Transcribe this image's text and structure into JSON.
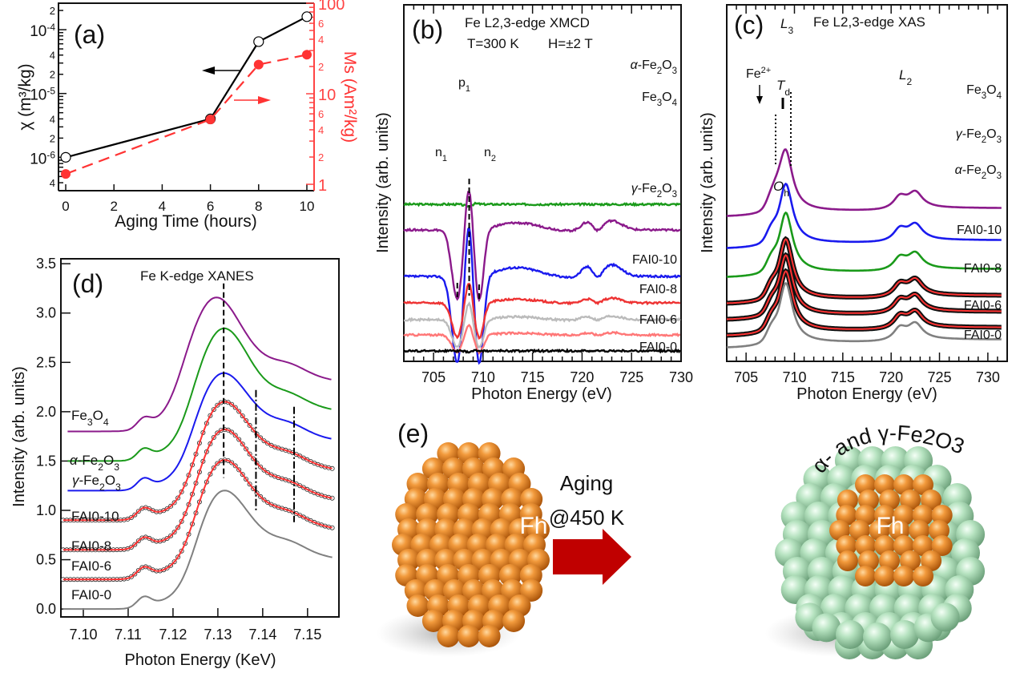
{
  "figure": {
    "panels": [
      "(a)",
      "(b)",
      "(c)",
      "(d)",
      "(e)"
    ]
  },
  "chart_data": [
    {
      "id": "a",
      "type": "line",
      "panel_label": "(a)",
      "xlabel": "Aging Time (hours)",
      "ylabel_left": "χ (m³/kg)",
      "ylabel_right": "Ms (Am²/kg)",
      "xlim": [
        -0.3,
        10.3
      ],
      "xticks": [
        0,
        2,
        4,
        6,
        8,
        10
      ],
      "ylim_left": [
        3e-07,
        0.00026
      ],
      "ylim_right": [
        0.85,
        100
      ],
      "yscale": "log",
      "left_tick_labels": [
        {
          "v": 4e-07,
          "t": "4"
        },
        {
          "v": 1e-06,
          "t": "10",
          "sup": "-6"
        },
        {
          "v": 2e-06,
          "t": "2"
        },
        {
          "v": 4e-06,
          "t": "4"
        },
        {
          "v": 1e-05,
          "t": "10",
          "sup": "-5"
        },
        {
          "v": 2e-05,
          "t": "2"
        },
        {
          "v": 4e-05,
          "t": "4"
        },
        {
          "v": 0.0001,
          "t": "10",
          "sup": "-4"
        },
        {
          "v": 0.0002,
          "t": "2"
        }
      ],
      "right_tick_labels": [
        {
          "v": 1,
          "t": "1"
        },
        {
          "v": 2,
          "t": "2"
        },
        {
          "v": 4,
          "t": "4"
        },
        {
          "v": 6,
          "t": "6"
        },
        {
          "v": 10,
          "t": "10"
        },
        {
          "v": 20,
          "t": "2"
        },
        {
          "v": 40,
          "t": "4"
        },
        {
          "v": 60,
          "t": "6"
        },
        {
          "v": 100,
          "t": "100"
        }
      ],
      "series": [
        {
          "name": "χ",
          "axis": "left",
          "color": "#000000",
          "marker": "open-circle",
          "dash": false,
          "x": [
            0,
            6,
            8,
            10
          ],
          "y": [
            1e-06,
            4e-06,
            6.5e-05,
            0.00016
          ]
        },
        {
          "name": "Ms",
          "axis": "right",
          "color": "#ff3333",
          "marker": "filled-circle",
          "dash": true,
          "x": [
            0,
            6,
            8,
            10
          ],
          "y": [
            1.3,
            5.2,
            21,
            27
          ]
        }
      ],
      "annotations": [
        {
          "type": "arrow",
          "direction": "left",
          "color": "#000000",
          "meaning": "left axis"
        },
        {
          "type": "arrow",
          "direction": "right",
          "color": "#ff3333",
          "meaning": "right axis"
        }
      ]
    },
    {
      "id": "b",
      "type": "line",
      "panel_label": "(b)",
      "title": "Fe L2,3-edge XMCD",
      "subtitle_1": "T=300 K",
      "subtitle_2": "H=±2 T",
      "xlabel": "Photon Energy (eV)",
      "ylabel": "Intensity (arb. units)",
      "xlim": [
        702,
        730
      ],
      "xticks": [
        705,
        710,
        715,
        720,
        725,
        730
      ],
      "peak_labels": [
        "p1",
        "n1",
        "n2"
      ],
      "vlines_eV": [
        707.4,
        708.6,
        709.6
      ],
      "series": [
        {
          "name": "α-Fe2O3",
          "color": "#1a9a1a",
          "offset": 9.3,
          "scale": 0.1,
          "kind": "flat"
        },
        {
          "name": "Fe3O4",
          "color": "#8b1a8b",
          "offset": 7.7,
          "scale": 1.0,
          "kind": "xmcd"
        },
        {
          "name": "γ-Fe2O3",
          "color": "#1a1aee",
          "offset": 4.8,
          "scale": 1.25,
          "kind": "xmcd"
        },
        {
          "name": "FAI0-10",
          "color": "#ee3333",
          "offset": 3.15,
          "scale": 0.5,
          "kind": "xmcd"
        },
        {
          "name": "FAI0-8",
          "color": "#bbbbbb",
          "offset": 2.1,
          "scale": 0.4,
          "kind": "xmcd"
        },
        {
          "name": "FAI0-6",
          "color": "#ff7777",
          "offset": 1.15,
          "scale": 0.25,
          "kind": "xmcd"
        },
        {
          "name": "FAI0-0",
          "color": "#000000",
          "offset": 0.15,
          "scale": 0.05,
          "kind": "flat"
        }
      ]
    },
    {
      "id": "c",
      "type": "line",
      "panel_label": "(c)",
      "title": "Fe L2,3-edge XAS",
      "xlabel": "Photon Energy (eV)",
      "ylabel": "Intensity (arb. units)",
      "xlim": [
        703,
        732
      ],
      "xticks": [
        705,
        710,
        715,
        720,
        725,
        730
      ],
      "peak_labels": [
        "L3",
        "L2",
        "Fe2+",
        "Td",
        "Oh"
      ],
      "series": [
        {
          "name": "Fe3O4",
          "color": "#8b1a8b",
          "offset": 8.4,
          "fit": false
        },
        {
          "name": "γ-Fe2O3",
          "color": "#1a1aee",
          "offset": 6.4,
          "fit": false
        },
        {
          "name": "α-Fe2O3",
          "color": "#1a9a1a",
          "offset": 4.6,
          "fit": false
        },
        {
          "name": "FAI0-10",
          "color": "#000000",
          "offset": 2.95,
          "fit": true,
          "fit_color": "#ff3333"
        },
        {
          "name": "FAI0-8",
          "color": "#000000",
          "offset": 1.95,
          "fit": true,
          "fit_color": "#ff3333"
        },
        {
          "name": "FAI0-6",
          "color": "#000000",
          "offset": 0.95,
          "fit": true,
          "fit_color": "#ff3333"
        },
        {
          "name": "FAI0-0",
          "color": "#808080",
          "offset": 0.2,
          "fit": false
        }
      ]
    },
    {
      "id": "d",
      "type": "line",
      "panel_label": "(d)",
      "title": "Fe K-edge XANES",
      "xlabel": "Photon Energy (KeV)",
      "ylabel": "Intensity (arb. units)",
      "xlim": [
        7.095,
        7.157
      ],
      "ylim": [
        -0.08,
        3.55
      ],
      "xticks": [
        7.1,
        7.11,
        7.12,
        7.13,
        7.14,
        7.15
      ],
      "xtick_labels": [
        "7.10",
        "7.11",
        "7.12",
        "7.13",
        "7.14",
        "7.15"
      ],
      "yticks": [
        0.0,
        0.5,
        1.0,
        1.5,
        2.0,
        2.5,
        3.0,
        3.5
      ],
      "ytick_labels": [
        "0.0",
        "0.5",
        "1.0",
        "1.5",
        "2.0",
        "2.5",
        "3.0",
        "3.5"
      ],
      "vlines_keV": [
        7.1313,
        7.1385,
        7.147
      ],
      "series": [
        {
          "name": "Fe3O4",
          "color": "#8b1a8b",
          "offset": 1.8,
          "edge": 7.1215,
          "peak": 1.48,
          "peak_e": 7.1298,
          "fit": false
        },
        {
          "name": "α-Fe2O3",
          "color": "#1a9a1a",
          "offset": 1.5,
          "edge": 7.1235,
          "peak": 1.5,
          "peak_e": 7.1315,
          "fit": false
        },
        {
          "name": "γ-Fe2O3",
          "color": "#1a1aee",
          "offset": 1.2,
          "edge": 7.124,
          "peak": 1.35,
          "peak_e": 7.1313,
          "fit": false
        },
        {
          "name": "FAI0-10",
          "color": "#000000",
          "offset": 0.9,
          "edge": 7.1245,
          "peak": 1.37,
          "peak_e": 7.1313,
          "fit": true,
          "fit_color": "#ff3333"
        },
        {
          "name": "FAI0-8",
          "color": "#000000",
          "offset": 0.6,
          "edge": 7.1245,
          "peak": 1.39,
          "peak_e": 7.1313,
          "fit": true,
          "fit_color": "#ff3333"
        },
        {
          "name": "FAI0-6",
          "color": "#000000",
          "offset": 0.3,
          "edge": 7.1245,
          "peak": 1.38,
          "peak_e": 7.1313,
          "fit": true,
          "fit_color": "#ff3333"
        },
        {
          "name": "FAI0-0",
          "color": "#808080",
          "offset": 0.0,
          "edge": 7.1245,
          "peak": 1.37,
          "peak_e": 7.1313,
          "fit": false
        }
      ]
    }
  ],
  "schematic": {
    "panel_label": "(e)",
    "left_label": "Fh",
    "right_core_label": "Fh",
    "right_shell_label": "α- and γ-Fe2O3",
    "arrow_text_1": "Aging",
    "arrow_text_2": "@450 K",
    "core_color": "#e07a20",
    "shell_color": "#a8d8b0",
    "arrow_color": "#c00000"
  }
}
